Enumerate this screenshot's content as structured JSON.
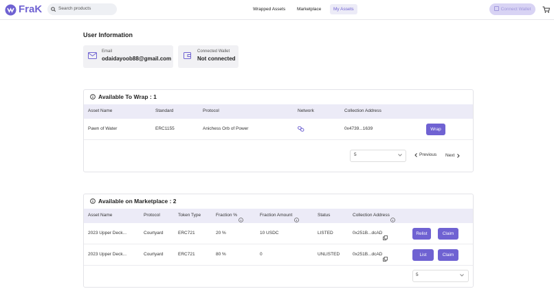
{
  "header": {
    "logo": "FraK",
    "search_placeholder": "Search products",
    "nav": [
      "Wrapped Assets",
      "Marketplace",
      "My Assets"
    ],
    "connect_wallet": "Connect Wallet"
  },
  "user_info": {
    "title": "User Information",
    "email_label": "Email",
    "email": "odaidayoob88@gmail.com",
    "wallet_label": "Connected Wallet",
    "wallet": "Not connected"
  },
  "wrap_section": {
    "title": "Available To Wrap : 1",
    "columns": [
      "Asset Name",
      "Standard",
      "Protocol",
      "Network",
      "Collection Address"
    ],
    "rows": [
      [
        "Pawn of Water",
        "ERC1155",
        "Anichess Orb of Power",
        "0x4739...1639",
        "Wrap"
      ]
    ],
    "page_size": "5",
    "previous": "Previous",
    "next": "Next"
  },
  "market_section": {
    "title": "Available on Marketplace : 2",
    "columns": [
      "Asset Name",
      "Protocol",
      "Token Type",
      "Fraction %",
      "Fraction Amount",
      "Status",
      "Collection Address"
    ],
    "rows": [
      [
        "2023 Upper Deck...",
        "Courtyard",
        "ERC721",
        "20 %",
        "10 USDC",
        "LISTED",
        "0x251B...dcAD",
        "Relist",
        "Claim"
      ],
      [
        "2023 Upper Deck...",
        "Courtyard",
        "ERC721",
        "80 %",
        "0",
        "UNLISTED",
        "0x251B...dcAD",
        "List",
        "Claim"
      ]
    ],
    "page_size": "5"
  }
}
